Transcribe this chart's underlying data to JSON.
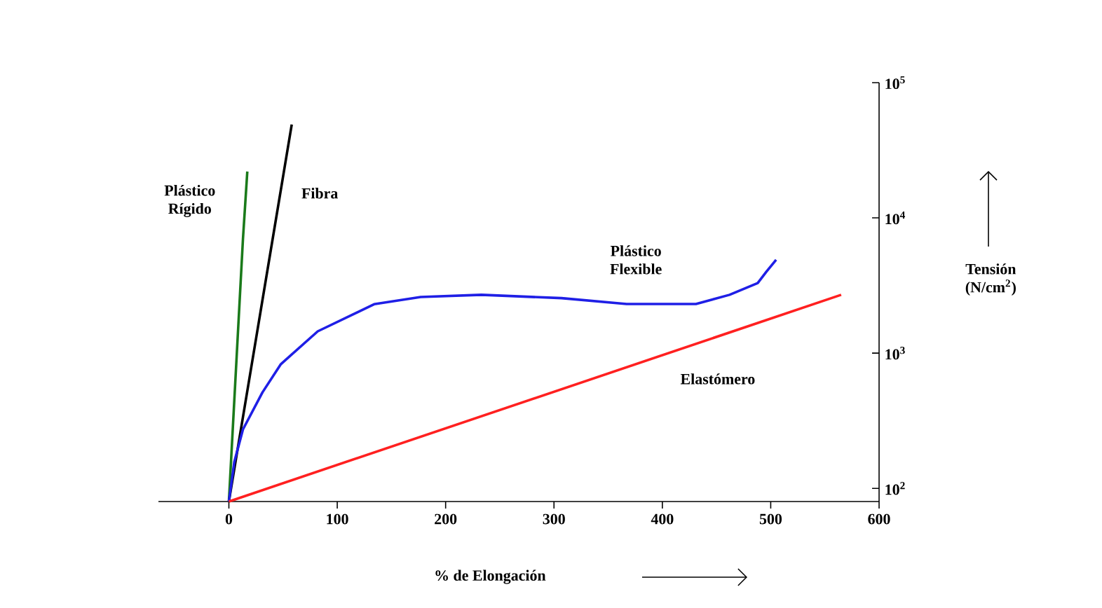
{
  "chart_data": {
    "type": "line",
    "xlabel": "% de Elongación",
    "ylabel": "Tensión (N/cm$^{2}$)",
    "log": "y",
    "marker": "none",
    "line_style": "solid",
    "xlim": [
      -65,
      600
    ],
    "xticks": [
      0,
      100,
      200,
      300,
      400,
      500,
      600
    ],
    "ylim": [
      80,
      100000
    ],
    "yticks": [
      {
        "value": 100,
        "label": "10$^{2}$"
      },
      {
        "value": 1000,
        "label": "10$^{3}$"
      },
      {
        "value": 10000,
        "label": "10$^{4}$"
      },
      {
        "value": 100000,
        "label": "10$^{5}$"
      }
    ],
    "series": [
      {
        "name": "Plástico Rígido",
        "color": "#1a7a1a",
        "x": [
          0,
          13,
          17
        ],
        "values": [
          80,
          7000,
          22000
        ]
      },
      {
        "name": "Fibra",
        "color": "#000000",
        "x": [
          0,
          58
        ],
        "values": [
          80,
          49000
        ]
      },
      {
        "name": "Plástico Flexible",
        "color": "#1f1fe6",
        "x": [
          0,
          5,
          13,
          31,
          48,
          82,
          134,
          177,
          233,
          307,
          367,
          431,
          462,
          488,
          496,
          505
        ],
        "values": [
          80,
          157,
          273,
          513,
          830,
          1450,
          2300,
          2600,
          2700,
          2550,
          2310,
          2310,
          2700,
          3300,
          4000,
          4900
        ]
      },
      {
        "name": "Elastómero",
        "color": "#ff2020",
        "x": [
          0,
          565
        ],
        "values": [
          80,
          2700
        ]
      }
    ]
  }
}
